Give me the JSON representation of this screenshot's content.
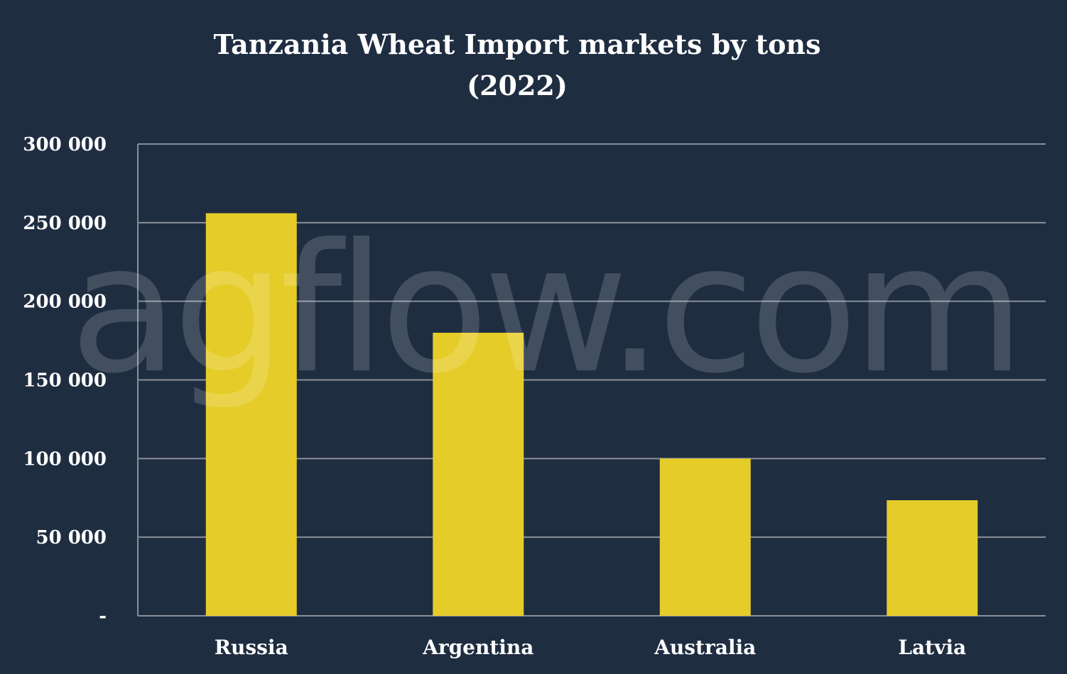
{
  "chart_data": {
    "type": "bar",
    "title_lines": [
      "Tanzania Wheat Import markets by tons",
      "(2022)"
    ],
    "categories": [
      "Russia",
      "Argentina",
      "Australia",
      "Latvia"
    ],
    "values": [
      256000,
      180000,
      100000,
      73500
    ],
    "ylim": [
      0,
      300000
    ],
    "yticks": [
      0,
      50000,
      100000,
      150000,
      200000,
      250000,
      300000
    ],
    "ytick_labels": [
      "-",
      "50 000",
      "100 000",
      "150 000",
      "200 000",
      "250 000",
      "300 000"
    ],
    "grid": true,
    "legend": "none",
    "colors": {
      "background": "#1f2d41",
      "bar": "#e5cc29",
      "grid": "#8a8f98",
      "text": "#ffffff"
    }
  },
  "watermark": {
    "text": "agflow.com"
  }
}
